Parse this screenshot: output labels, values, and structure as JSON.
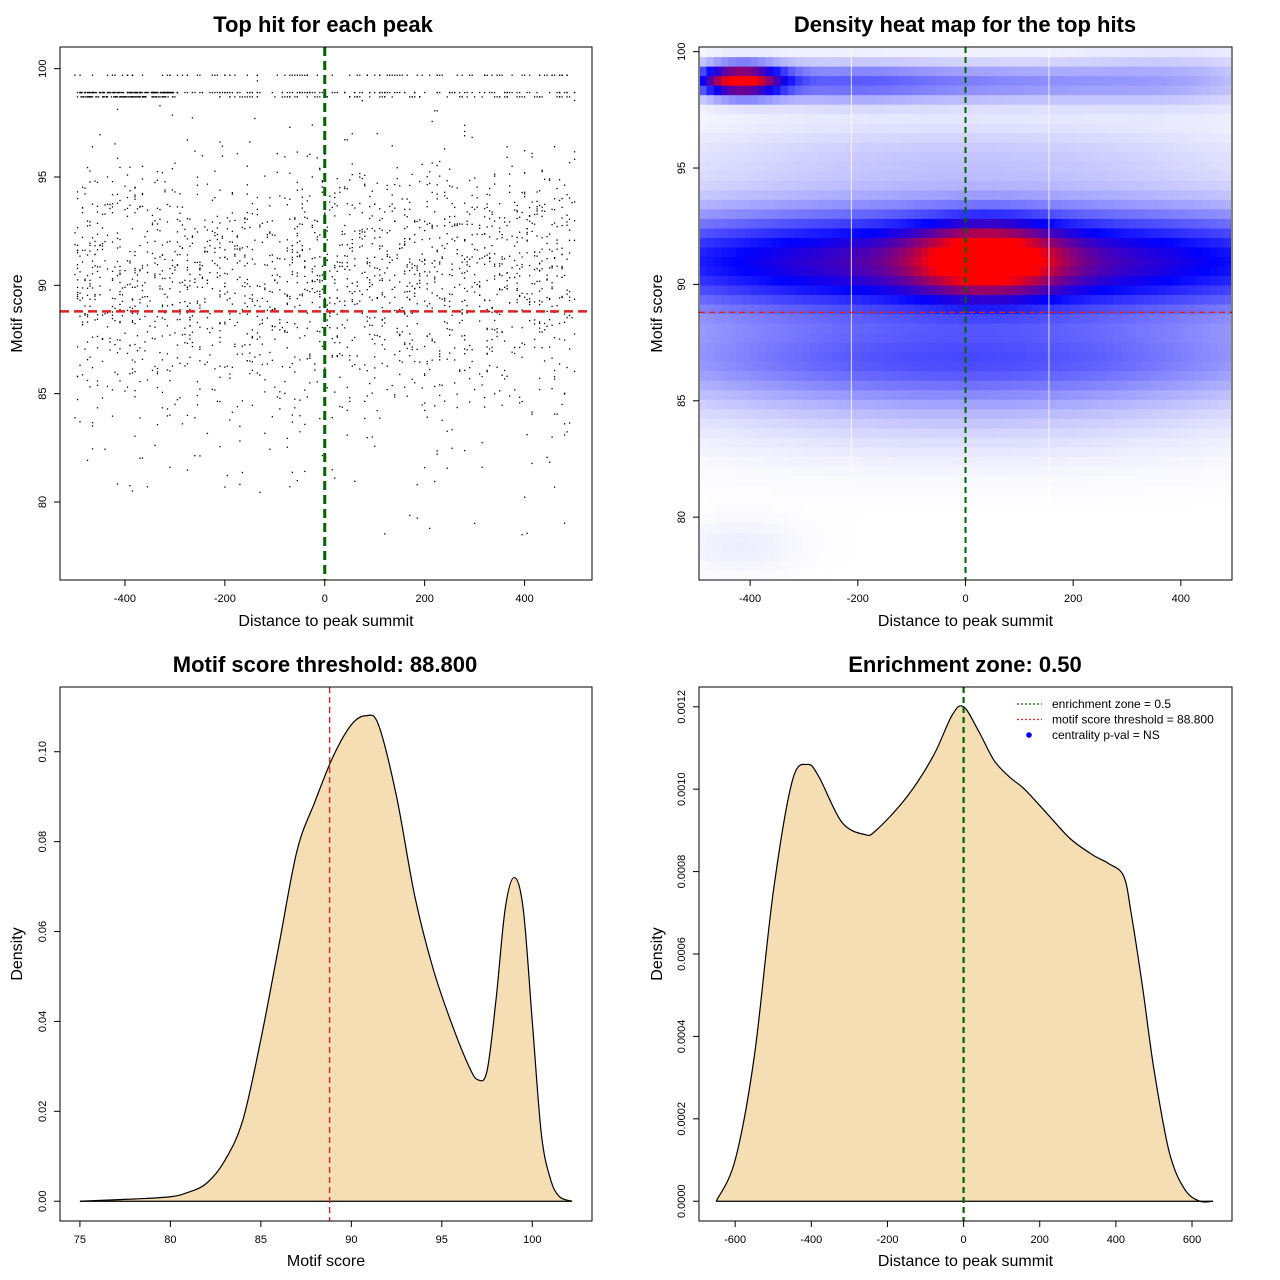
{
  "chart_data": [
    {
      "id": "scatter",
      "type": "scatter",
      "title": "Top hit for each peak",
      "xlabel": "Distance to peak summit",
      "ylabel": "Motif score",
      "xlim": [
        -530,
        535
      ],
      "ylim": [
        76.4,
        101.0
      ],
      "xticks": [
        -400,
        -200,
        0,
        200,
        400
      ],
      "yticks": [
        80,
        85,
        90,
        95,
        100
      ],
      "vline": 0,
      "vline_color": "#006400",
      "hline": 88.8,
      "hline_color": "#dd2222",
      "point_color": "#000000",
      "score_bands": [
        {
          "score": 99.7,
          "weight": 0.03
        },
        {
          "score": 98.9,
          "weight": 0.1
        },
        {
          "score": 98.7,
          "weight": 0.06
        },
        {
          "score": 91.0,
          "sd": 2.4,
          "weight": 0.61
        },
        {
          "score": 87.0,
          "sd": 2.2,
          "weight": 0.14
        },
        {
          "score": 83.0,
          "sd": 2.5,
          "weight": 0.04
        },
        {
          "score": 95.5,
          "sd": 1.3,
          "weight": 0.02
        }
      ],
      "n_points": 2600
    },
    {
      "id": "heatmap",
      "type": "heatmap",
      "title": "Density heat map for the top hits",
      "xlabel": "Distance to peak summit",
      "ylabel": "Motif score",
      "xlim": [
        -495,
        495
      ],
      "ylim": [
        77.3,
        100.2
      ],
      "xticks": [
        -400,
        -200,
        0,
        200,
        400
      ],
      "yticks": [
        80,
        85,
        90,
        95,
        100
      ],
      "vline": 0,
      "vline_color": "#006400",
      "hline": 88.8,
      "hline_color": "#dd2222",
      "white_lines": [
        -212,
        155
      ],
      "color_scale": [
        "#ffffff",
        "#0000ff",
        "#ff0000"
      ],
      "blobs": [
        {
          "x": 20,
          "y": 91.0,
          "sx": 550,
          "sy": 1.6,
          "w": 1.0
        },
        {
          "x": 40,
          "y": 91.1,
          "sx": 90,
          "sy": 1.0,
          "w": 0.9
        },
        {
          "x": -420,
          "y": 98.8,
          "sx": 55,
          "sy": 0.45,
          "w": 1.4
        },
        {
          "x": -250,
          "y": 98.7,
          "sx": 140,
          "sy": 0.6,
          "w": 0.35
        },
        {
          "x": 50,
          "y": 98.7,
          "sx": 200,
          "sy": 0.6,
          "w": 0.3
        },
        {
          "x": 400,
          "y": 98.8,
          "sx": 150,
          "sy": 0.8,
          "w": 0.2
        },
        {
          "x": 0,
          "y": 95.5,
          "sx": 400,
          "sy": 1.2,
          "w": 0.15
        },
        {
          "x": 0,
          "y": 86.8,
          "sx": 480,
          "sy": 1.3,
          "w": 0.45
        },
        {
          "x": 0,
          "y": 84.5,
          "sx": 380,
          "sy": 1.5,
          "w": 0.12
        },
        {
          "x": -420,
          "y": 78.8,
          "sx": 80,
          "sy": 0.8,
          "w": 0.05
        }
      ]
    },
    {
      "id": "score-density",
      "type": "area",
      "title": "Motif score threshold: 88.800",
      "xlabel": "Motif score",
      "ylabel": "Density",
      "xlim": [
        73.9,
        103.3
      ],
      "ylim": [
        -0.0044,
        0.1144
      ],
      "xticks": [
        75,
        80,
        85,
        90,
        95,
        100
      ],
      "yticks": [
        0.0,
        0.02,
        0.04,
        0.06,
        0.08,
        0.1
      ],
      "ytick_labels": [
        "0.00",
        "0.02",
        "0.04",
        "0.06",
        "0.08",
        "0.10"
      ],
      "fill": "#f5deb3",
      "vline": 88.8,
      "vline_color": "#dd2222",
      "x": [
        75,
        78,
        80,
        81,
        82,
        83,
        84,
        85,
        86,
        87,
        88,
        89,
        90,
        90.8,
        91.5,
        92.5,
        93.5,
        94.5,
        95.5,
        96.5,
        97,
        97.5,
        98,
        98.5,
        99,
        99.5,
        100,
        100.5,
        101,
        101.5,
        102.2
      ],
      "y": [
        0.0,
        0.0005,
        0.001,
        0.002,
        0.004,
        0.009,
        0.018,
        0.036,
        0.057,
        0.078,
        0.089,
        0.099,
        0.106,
        0.108,
        0.106,
        0.09,
        0.068,
        0.052,
        0.04,
        0.03,
        0.027,
        0.029,
        0.045,
        0.065,
        0.072,
        0.065,
        0.04,
        0.015,
        0.005,
        0.001,
        0.0
      ]
    },
    {
      "id": "distance-density",
      "type": "area",
      "title": "Enrichment zone: 0.50",
      "xlabel": "Distance to peak summit",
      "ylabel": "Density",
      "xlim": [
        -695,
        705
      ],
      "ylim": [
        -4.8e-05,
        0.001248
      ],
      "xticks": [
        -600,
        -400,
        -200,
        0,
        200,
        400,
        600
      ],
      "yticks": [
        0,
        0.0002,
        0.0004,
        0.0006,
        0.0008,
        0.001,
        0.0012
      ],
      "ytick_labels": [
        "0.0000",
        "0.0002",
        "0.0004",
        "0.0006",
        "0.0008",
        "0.0010",
        "0.0012"
      ],
      "fill": "#f5deb3",
      "vline": 0,
      "vline_color": "#006400",
      "x": [
        -650,
        -600,
        -550,
        -500,
        -450,
        -410,
        -380,
        -320,
        -260,
        -230,
        -150,
        -80,
        -30,
        0,
        40,
        80,
        120,
        160,
        220,
        280,
        340,
        380,
        420,
        440,
        470,
        500,
        540,
        580,
        620,
        655
      ],
      "y": [
        0.0,
        0.0001,
        0.00035,
        0.00075,
        0.00102,
        0.00106,
        0.00103,
        0.00092,
        0.00089,
        0.0009,
        0.00098,
        0.00108,
        0.00118,
        0.0012,
        0.00114,
        0.00107,
        0.00103,
        0.001,
        0.00094,
        0.00088,
        0.00084,
        0.00082,
        0.00079,
        0.0007,
        0.00052,
        0.00032,
        0.00012,
        3e-05,
        0.0,
        0.0
      ],
      "legend": {
        "placement": "top-right",
        "entries": [
          {
            "label": "enrichment zone = 0.5",
            "color": "#006400",
            "kind": "dotted-line"
          },
          {
            "label": "motif score threshold = 88.800",
            "color": "#dd2222",
            "kind": "dotted-line"
          },
          {
            "label": "centrality p-val = NS",
            "color": "#0000ff",
            "kind": "point"
          }
        ]
      }
    }
  ]
}
